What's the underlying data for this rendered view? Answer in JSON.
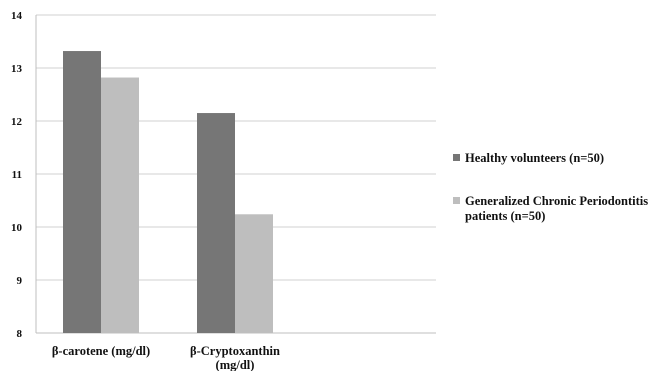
{
  "chart_data": {
    "type": "bar",
    "title": "",
    "xlabel": "",
    "ylabel": "",
    "categories": [
      "β-carotene (mg/dl)",
      "β-Cryptoxanthin (mg/dl)"
    ],
    "series": [
      {
        "name": "Healthy volunteers (n=50)",
        "color": "#767676",
        "values": [
          13.32,
          12.15
        ]
      },
      {
        "name": "Generalized Chronic Periodontitis patients (n=50)",
        "color": "#bebebe",
        "values": [
          12.82,
          10.24
        ]
      }
    ],
    "ylim": [
      8,
      14
    ],
    "yticks": [
      8,
      9,
      10,
      11,
      12,
      13,
      14
    ],
    "grid": true,
    "legend_position": "right"
  }
}
